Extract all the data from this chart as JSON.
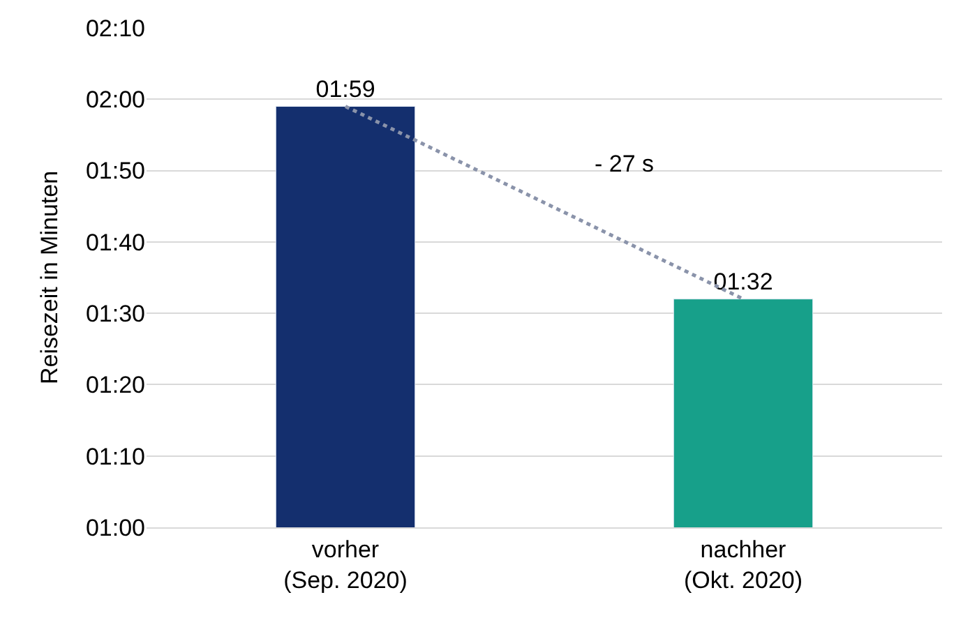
{
  "chart_data": {
    "type": "bar",
    "ylabel": "Reisezeit in Minuten",
    "categories": [
      "vorher\n(Sep. 2020)",
      "nachher\n(Okt. 2020)"
    ],
    "series": [
      {
        "colors": [
          "#142f6e",
          "#17a08a"
        ],
        "values": [
          119,
          92
        ],
        "value_labels": [
          "01:59",
          "01:32"
        ]
      },
      {
        "type": "line",
        "color": "#8a93aa",
        "line_style": "dotted",
        "values": [
          119,
          92
        ]
      }
    ],
    "ylim": [
      60,
      130
    ],
    "yticks": [
      {
        "value": 60,
        "label": "01:00"
      },
      {
        "value": 70,
        "label": "01:10"
      },
      {
        "value": 80,
        "label": "01:20"
      },
      {
        "value": 90,
        "label": "01:30"
      },
      {
        "value": 100,
        "label": "01:40"
      },
      {
        "value": 110,
        "label": "01:50"
      },
      {
        "value": 120,
        "label": "02:00"
      },
      {
        "value": 130,
        "label": "02:10"
      }
    ],
    "grid": "y",
    "annotations": [
      "- 27 s"
    ]
  }
}
